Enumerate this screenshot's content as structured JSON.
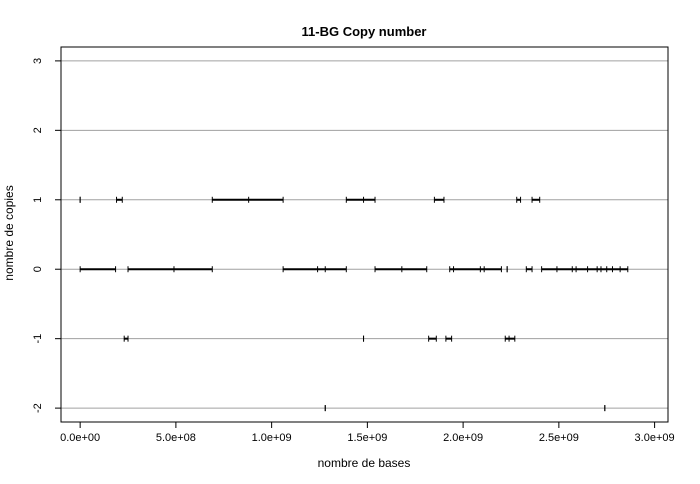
{
  "chart_data": {
    "type": "segments",
    "title": "11-BG Copy number",
    "xlabel": "nombre de bases",
    "ylabel": "nombre de copies",
    "xlim": [
      -100000000.0,
      3070000000.0
    ],
    "ylim": [
      -2.2,
      3.2
    ],
    "x_ticks": [
      0,
      500000000.0,
      1000000000.0,
      1500000000.0,
      2000000000.0,
      2500000000.0,
      3000000000.0
    ],
    "x_tick_labels": [
      "0.0e+00",
      "5.0e+08",
      "1.0e+09",
      "1.5e+09",
      "2.0e+09",
      "2.5e+09",
      "3.0e+09"
    ],
    "y_ticks": [
      -2,
      -1,
      0,
      1,
      2,
      3
    ],
    "y_tick_labels": [
      "-2",
      "-1",
      "0",
      "1",
      "2",
      "3"
    ],
    "grid": "horizontal",
    "line_color": "#000000",
    "grid_color": "#a0a0a0",
    "segments": [
      {
        "y": 1,
        "x": [
          0,
          0
        ],
        "breaks": []
      },
      {
        "y": 1,
        "x": [
          190000000.0,
          220000000.0
        ],
        "breaks": []
      },
      {
        "y": 1,
        "x": [
          690000000.0,
          1060000000.0
        ],
        "breaks": [
          880000000.0
        ]
      },
      {
        "y": 1,
        "x": [
          1390000000.0,
          1540000000.0
        ],
        "breaks": [
          1480000000.0
        ]
      },
      {
        "y": 1,
        "x": [
          1850000000.0,
          1900000000.0
        ],
        "breaks": []
      },
      {
        "y": 1,
        "x": [
          2280000000.0,
          2300000000.0
        ],
        "breaks": []
      },
      {
        "y": 1,
        "x": [
          2360000000.0,
          2400000000.0
        ],
        "breaks": []
      },
      {
        "y": 0,
        "x": [
          0,
          185000000.0
        ],
        "breaks": []
      },
      {
        "y": 0,
        "x": [
          250000000.0,
          690000000.0
        ],
        "breaks": [
          490000000.0
        ]
      },
      {
        "y": 0,
        "x": [
          1060000000.0,
          1390000000.0
        ],
        "breaks": [
          1240000000.0,
          1280000000.0
        ]
      },
      {
        "y": 0,
        "x": [
          1540000000.0,
          1810000000.0
        ],
        "breaks": [
          1680000000.0
        ]
      },
      {
        "y": 0,
        "x": [
          1930000000.0,
          2200000000.0
        ],
        "breaks": [
          1950000000.0,
          2090000000.0,
          2110000000.0
        ]
      },
      {
        "y": 0,
        "x": [
          2230000000.0,
          2230000000.0
        ],
        "breaks": []
      },
      {
        "y": 0,
        "x": [
          2330000000.0,
          2360000000.0
        ],
        "breaks": []
      },
      {
        "y": 0,
        "x": [
          2410000000.0,
          2860000000.0
        ],
        "breaks": [
          2490000000.0,
          2570000000.0,
          2590000000.0,
          2650000000.0,
          2700000000.0,
          2720000000.0,
          2750000000.0,
          2780000000.0,
          2820000000.0
        ]
      },
      {
        "y": -1,
        "x": [
          230000000.0,
          250000000.0
        ],
        "breaks": []
      },
      {
        "y": -1,
        "x": [
          1480000000.0,
          1480000000.0
        ],
        "breaks": []
      },
      {
        "y": -1,
        "x": [
          1820000000.0,
          1860000000.0
        ],
        "breaks": []
      },
      {
        "y": -1,
        "x": [
          1910000000.0,
          1940000000.0
        ],
        "breaks": []
      },
      {
        "y": -1,
        "x": [
          2220000000.0,
          2270000000.0
        ],
        "breaks": [
          2240000000.0
        ]
      },
      {
        "y": -2,
        "x": [
          1280000000.0,
          1280000000.0
        ],
        "breaks": []
      },
      {
        "y": -2,
        "x": [
          2740000000.0,
          2740000000.0
        ],
        "breaks": []
      }
    ]
  }
}
